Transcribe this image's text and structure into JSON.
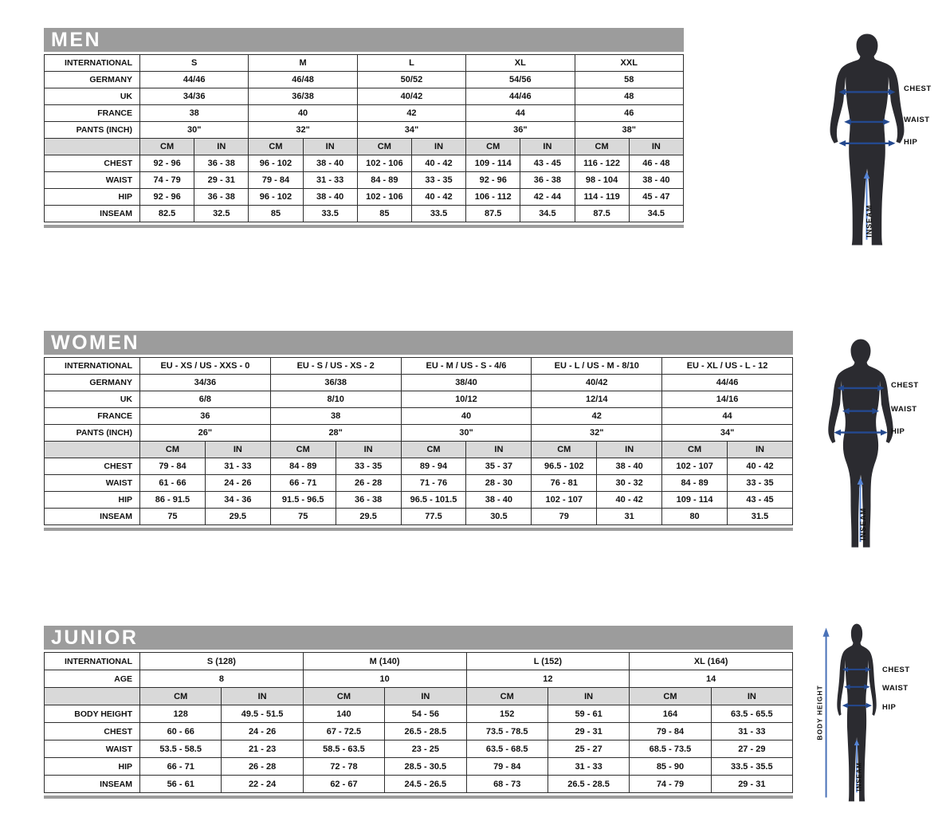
{
  "colors": {
    "title_bar_gray": "#9c9c9c",
    "unit_row_gray": "#d9d9d9",
    "table_border": "#2d2d2d",
    "silhouette": "#2b2b30",
    "measure_arrow_blue": "#24498f",
    "inseam_blue": "#5584d6",
    "body_height_blue": "#4a72b8"
  },
  "figure_labels": {
    "chest": "CHEST",
    "waist": "WAIST",
    "hip": "HIP",
    "inseam": "INSEAM",
    "body_height": "BODY HEIGHT"
  },
  "tables": {
    "men": {
      "title": "MEN",
      "header_rows": [
        {
          "label": "INTERNATIONAL",
          "values": [
            "S",
            "M",
            "L",
            "XL",
            "XXL"
          ]
        },
        {
          "label": "GERMANY",
          "values": [
            "44/46",
            "46/48",
            "50/52",
            "54/56",
            "58"
          ]
        },
        {
          "label": "UK",
          "values": [
            "34/36",
            "36/38",
            "40/42",
            "44/46",
            "48"
          ]
        },
        {
          "label": "FRANCE",
          "values": [
            "38",
            "40",
            "42",
            "44",
            "46"
          ]
        },
        {
          "label": "PANTS (INCH)",
          "values": [
            "30\"",
            "32\"",
            "34\"",
            "36\"",
            "38\""
          ]
        }
      ],
      "unit_row": {
        "label": "",
        "units": [
          "CM",
          "IN"
        ]
      },
      "measure_rows": [
        {
          "label": "CHEST",
          "values": [
            "92 - 96",
            "36 - 38",
            "96 - 102",
            "38 - 40",
            "102 - 106",
            "40 - 42",
            "109 - 114",
            "43 - 45",
            "116 - 122",
            "46 - 48"
          ]
        },
        {
          "label": "WAIST",
          "values": [
            "74 - 79",
            "29 - 31",
            "79 - 84",
            "31 - 33",
            "84 - 89",
            "33 - 35",
            "92 - 96",
            "36 - 38",
            "98 - 104",
            "38 - 40"
          ]
        },
        {
          "label": "HIP",
          "values": [
            "92 - 96",
            "36 - 38",
            "96 - 102",
            "38 - 40",
            "102 - 106",
            "40 - 42",
            "106 - 112",
            "42 - 44",
            "114 - 119",
            "45 - 47"
          ]
        },
        {
          "label": "INSEAM",
          "values": [
            "82.5",
            "32.5",
            "85",
            "33.5",
            "85",
            "33.5",
            "87.5",
            "34.5",
            "87.5",
            "34.5"
          ]
        }
      ]
    },
    "women": {
      "title": "WOMEN",
      "header_rows": [
        {
          "label": "INTERNATIONAL",
          "values": [
            "EU - XS / US - XXS - 0",
            "EU - S / US - XS - 2",
            "EU - M / US - S - 4/6",
            "EU - L / US - M - 8/10",
            "EU - XL / US - L - 12"
          ]
        },
        {
          "label": "GERMANY",
          "values": [
            "34/36",
            "36/38",
            "38/40",
            "40/42",
            "44/46"
          ]
        },
        {
          "label": "UK",
          "values": [
            "6/8",
            "8/10",
            "10/12",
            "12/14",
            "14/16"
          ]
        },
        {
          "label": "FRANCE",
          "values": [
            "36",
            "38",
            "40",
            "42",
            "44"
          ]
        },
        {
          "label": "PANTS (INCH)",
          "values": [
            "26\"",
            "28\"",
            "30\"",
            "32\"",
            "34\""
          ]
        }
      ],
      "unit_row": {
        "label": "",
        "units": [
          "CM",
          "IN"
        ]
      },
      "measure_rows": [
        {
          "label": "CHEST",
          "values": [
            "79 - 84",
            "31 - 33",
            "84 - 89",
            "33 - 35",
            "89 - 94",
            "35 - 37",
            "96.5 - 102",
            "38 - 40",
            "102 - 107",
            "40 - 42"
          ]
        },
        {
          "label": "WAIST",
          "values": [
            "61 - 66",
            "24 - 26",
            "66 - 71",
            "26 - 28",
            "71 - 76",
            "28 - 30",
            "76 - 81",
            "30 - 32",
            "84 - 89",
            "33 - 35"
          ]
        },
        {
          "label": "HIP",
          "values": [
            "86 - 91.5",
            "34 - 36",
            "91.5 - 96.5",
            "36 - 38",
            "96.5 - 101.5",
            "38 - 40",
            "102 - 107",
            "40 - 42",
            "109 - 114",
            "43 - 45"
          ]
        },
        {
          "label": "INSEAM",
          "values": [
            "75",
            "29.5",
            "75",
            "29.5",
            "77.5",
            "30.5",
            "79",
            "31",
            "80",
            "31.5"
          ]
        }
      ]
    },
    "junior": {
      "title": "JUNIOR",
      "header_rows": [
        {
          "label": "INTERNATIONAL",
          "values": [
            "S (128)",
            "M (140)",
            "L (152)",
            "XL (164)"
          ]
        },
        {
          "label": "AGE",
          "values": [
            "8",
            "10",
            "12",
            "14"
          ]
        }
      ],
      "unit_row": {
        "label": "",
        "units": [
          "CM",
          "IN"
        ]
      },
      "measure_rows": [
        {
          "label": "BODY HEIGHT",
          "values": [
            "128",
            "49.5 - 51.5",
            "140",
            "54 - 56",
            "152",
            "59 - 61",
            "164",
            "63.5 - 65.5"
          ]
        },
        {
          "label": "CHEST",
          "values": [
            "60 - 66",
            "24 - 26",
            "67 - 72.5",
            "26.5 - 28.5",
            "73.5 - 78.5",
            "29 - 31",
            "79 - 84",
            "31 - 33"
          ]
        },
        {
          "label": "WAIST",
          "values": [
            "53.5 - 58.5",
            "21 - 23",
            "58.5 - 63.5",
            "23 - 25",
            "63.5 - 68.5",
            "25 - 27",
            "68.5 - 73.5",
            "27 - 29"
          ]
        },
        {
          "label": "HIP",
          "values": [
            "66 - 71",
            "26 - 28",
            "72 - 78",
            "28.5 - 30.5",
            "79 - 84",
            "31 - 33",
            "85 - 90",
            "33.5 - 35.5"
          ]
        },
        {
          "label": "INSEAM",
          "values": [
            "56 - 61",
            "22 - 24",
            "62 - 67",
            "24.5 - 26.5",
            "68 - 73",
            "26.5 - 28.5",
            "74 - 79",
            "29 - 31"
          ]
        }
      ]
    }
  }
}
